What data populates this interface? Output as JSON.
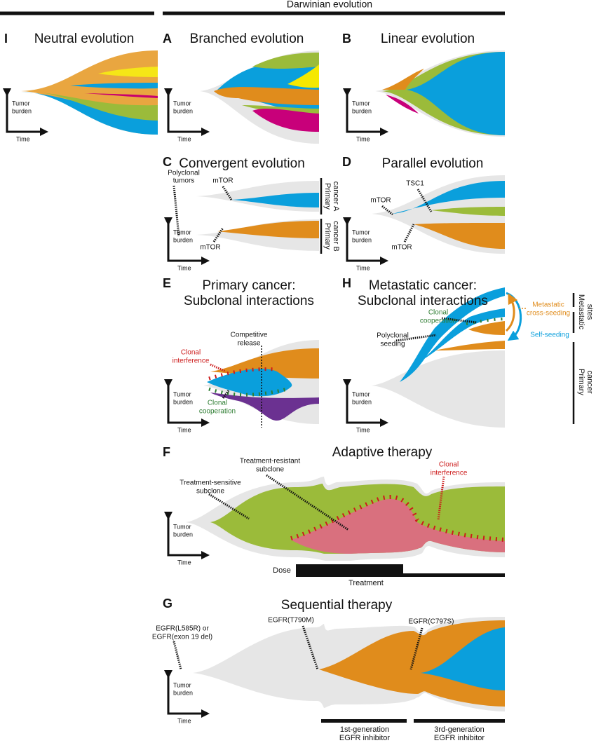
{
  "header": {
    "title": "Darwinian evolution"
  },
  "axis_labels": {
    "y": [
      "Tumor",
      "burden"
    ],
    "x": "Time"
  },
  "panels": [
    {
      "letter": "I",
      "title": [
        "Neutral evolution"
      ]
    },
    {
      "letter": "A",
      "title": [
        "Branched evolution"
      ]
    },
    {
      "letter": "B",
      "title": [
        "Linear evolution"
      ]
    },
    {
      "letter": "C",
      "title": [
        "Convergent evolution"
      ],
      "annotations": [
        [
          "Polyclonal",
          "tumors"
        ],
        [
          "mTOR"
        ],
        [
          "mTOR"
        ],
        [
          "Primary",
          "cancer A"
        ],
        [
          "Primary",
          "cancer B"
        ]
      ]
    },
    {
      "letter": "D",
      "title": [
        "Parallel evolution"
      ],
      "annotations": [
        [
          "TSC1"
        ],
        [
          "mTOR"
        ],
        [
          "mTOR"
        ]
      ]
    },
    {
      "letter": "E",
      "title": [
        "Primary cancer:",
        "Subclonal interactions"
      ],
      "annotations": [
        [
          "Competitive",
          "release"
        ],
        [
          "Clonal",
          "interference"
        ],
        [
          "Clonal",
          "cooperation"
        ]
      ]
    },
    {
      "letter": "H",
      "title": [
        "Metastatic cancer:",
        "Subclonal interactions"
      ],
      "annotations": [
        [
          "Clonal",
          "cooperation"
        ],
        [
          "Polyclonal",
          "seeding"
        ],
        [
          "Metastatic",
          "cross-seeding"
        ],
        [
          "Self-seeding"
        ],
        [
          "Metastatic",
          "sites"
        ],
        [
          "Primary",
          "cancer"
        ]
      ]
    },
    {
      "letter": "F",
      "title": [
        "Adaptive therapy"
      ],
      "annotations": [
        [
          "Treatment-resistant",
          "subclone"
        ],
        [
          "Treatment-sensitive",
          "subclone"
        ],
        [
          "Clonal",
          "interference"
        ],
        [
          "Dose"
        ],
        [
          "Treatment"
        ]
      ]
    },
    {
      "letter": "G",
      "title": [
        "Sequential therapy"
      ],
      "annotations": [
        [
          "EGFR(L585R) or",
          "EGFR(exon 19 del)"
        ],
        [
          "EGFR(T790M)"
        ],
        [
          "EGFR(C797S)"
        ],
        [
          "1st-generation",
          "EGFR inhibitor"
        ],
        [
          "3rd-generation",
          "EGFR inhibitor"
        ]
      ]
    }
  ]
}
